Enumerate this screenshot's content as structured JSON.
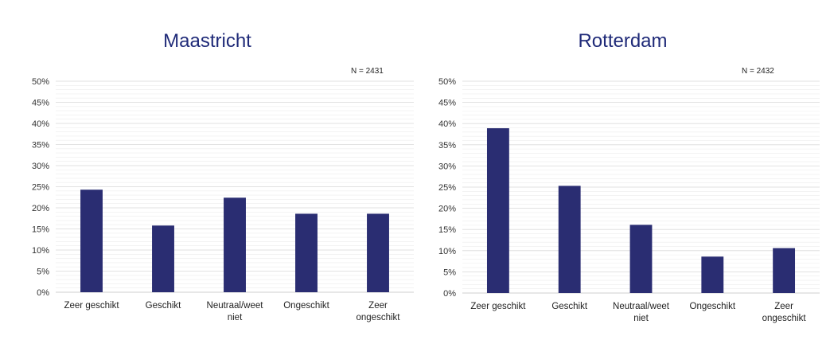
{
  "colors": {
    "bar": "#2a2d72",
    "title": "#1f2a78",
    "grid": "#d9d9d9"
  },
  "chart_data": [
    {
      "type": "bar",
      "title": "Maastricht",
      "annotation": "N = 2431",
      "categories": [
        [
          "Zeer geschikt"
        ],
        [
          "Geschikt"
        ],
        [
          "Neutraal/weet",
          "niet"
        ],
        [
          "Ongeschikt"
        ],
        [
          "Zeer",
          "ongeschikt"
        ]
      ],
      "values": [
        24.3,
        15.8,
        22.4,
        18.6,
        18.6
      ],
      "ylim": [
        0,
        50
      ],
      "yticks": [
        0,
        5,
        10,
        15,
        20,
        25,
        30,
        35,
        40,
        45,
        50
      ],
      "ytick_labels": [
        "0%",
        "5%",
        "10%",
        "15%",
        "20%",
        "25%",
        "30%",
        "35%",
        "40%",
        "45%",
        "50%"
      ],
      "grid": true,
      "legend": "none"
    },
    {
      "type": "bar",
      "title": "Rotterdam",
      "annotation": "N = 2432",
      "categories": [
        [
          "Zeer geschikt"
        ],
        [
          "Geschikt"
        ],
        [
          "Neutraal/weet",
          "niet"
        ],
        [
          "Ongeschikt"
        ],
        [
          "Zeer",
          "ongeschikt"
        ]
      ],
      "values": [
        38.9,
        25.3,
        16.1,
        8.6,
        10.6
      ],
      "ylim": [
        0,
        50
      ],
      "yticks": [
        0,
        5,
        10,
        15,
        20,
        25,
        30,
        35,
        40,
        45,
        50
      ],
      "ytick_labels": [
        "0%",
        "5%",
        "10%",
        "15%",
        "20%",
        "25%",
        "30%",
        "35%",
        "40%",
        "45%",
        "50%"
      ],
      "grid": true,
      "legend": "none"
    }
  ]
}
